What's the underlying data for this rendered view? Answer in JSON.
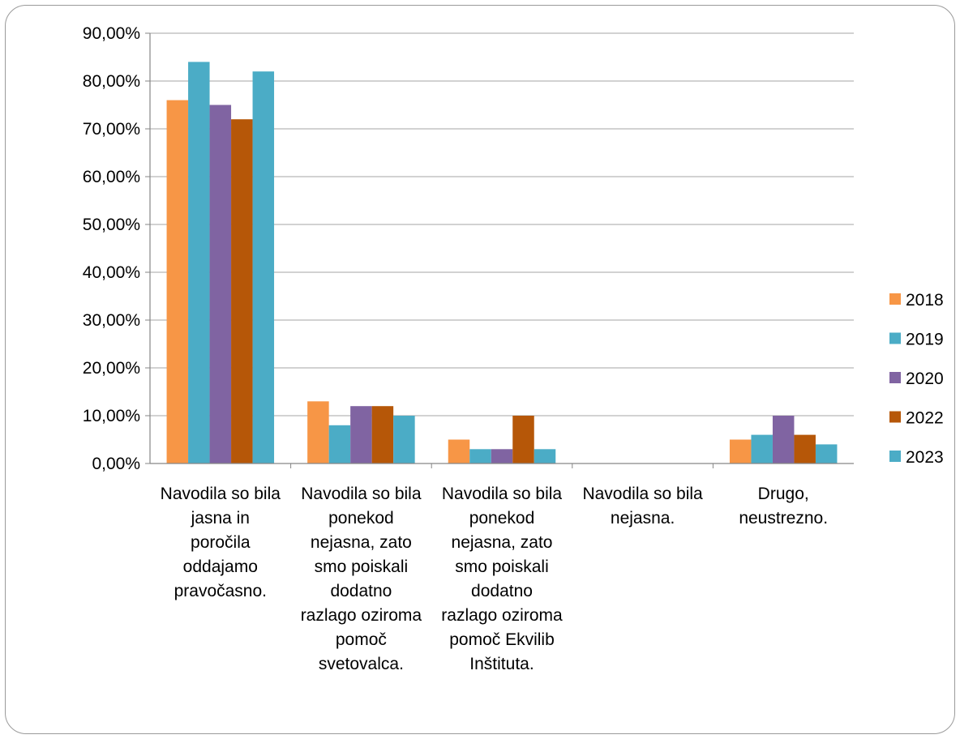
{
  "chart_data": {
    "type": "bar",
    "categories": [
      "Navodila so bila jasna in poročila oddajamo pravočasno.",
      "Navodila so bila ponekod nejasna, zato smo poiskali dodatno razlago oziroma pomoč svetovalca.",
      "Navodila so bila ponekod nejasna, zato smo poiskali dodatno razlago oziroma pomoč Ekvilib Inštituta.",
      "Navodila so bila nejasna.",
      "Drugo, neustrezno."
    ],
    "category_label_lines": [
      [
        "Navodila so bila",
        "jasna in",
        "poročila",
        "oddajamo",
        "pravočasno."
      ],
      [
        "Navodila so bila",
        "ponekod",
        "nejasna, zato",
        "smo poiskali",
        "dodatno",
        "razlago oziroma",
        "pomoč",
        "svetovalca."
      ],
      [
        "Navodila so bila",
        "ponekod",
        "nejasna, zato",
        "smo poiskali",
        "dodatno",
        "razlago oziroma",
        "pomoč Ekvilib",
        "Inštituta."
      ],
      [
        "Navodila so bila",
        "nejasna."
      ],
      [
        "Drugo,",
        "neustrezno."
      ]
    ],
    "series": [
      {
        "name": "2018",
        "color": "#F79646",
        "values": [
          76,
          13,
          5,
          0,
          5
        ]
      },
      {
        "name": "2019",
        "color": "#4BACC6",
        "values": [
          84,
          8,
          3,
          0,
          6
        ]
      },
      {
        "name": "2020",
        "color": "#8064A2",
        "values": [
          75,
          12,
          3,
          0,
          10
        ]
      },
      {
        "name": "2022",
        "color": "#B65708",
        "values": [
          72,
          12,
          10,
          0,
          6
        ]
      },
      {
        "name": "2023",
        "color": "#4BACC6",
        "values": [
          82,
          10,
          3,
          0,
          4
        ]
      }
    ],
    "ylim": [
      0,
      90
    ],
    "y_ticks": [
      0,
      10,
      20,
      30,
      40,
      50,
      60,
      70,
      80,
      90
    ],
    "y_tick_labels": [
      "0,00%",
      "10,00%",
      "20,00%",
      "30,00%",
      "40,00%",
      "50,00%",
      "60,00%",
      "70,00%",
      "80,00%",
      "90,00%"
    ],
    "grid": true,
    "legend_position": "right",
    "title": "",
    "xlabel": "",
    "ylabel": ""
  }
}
